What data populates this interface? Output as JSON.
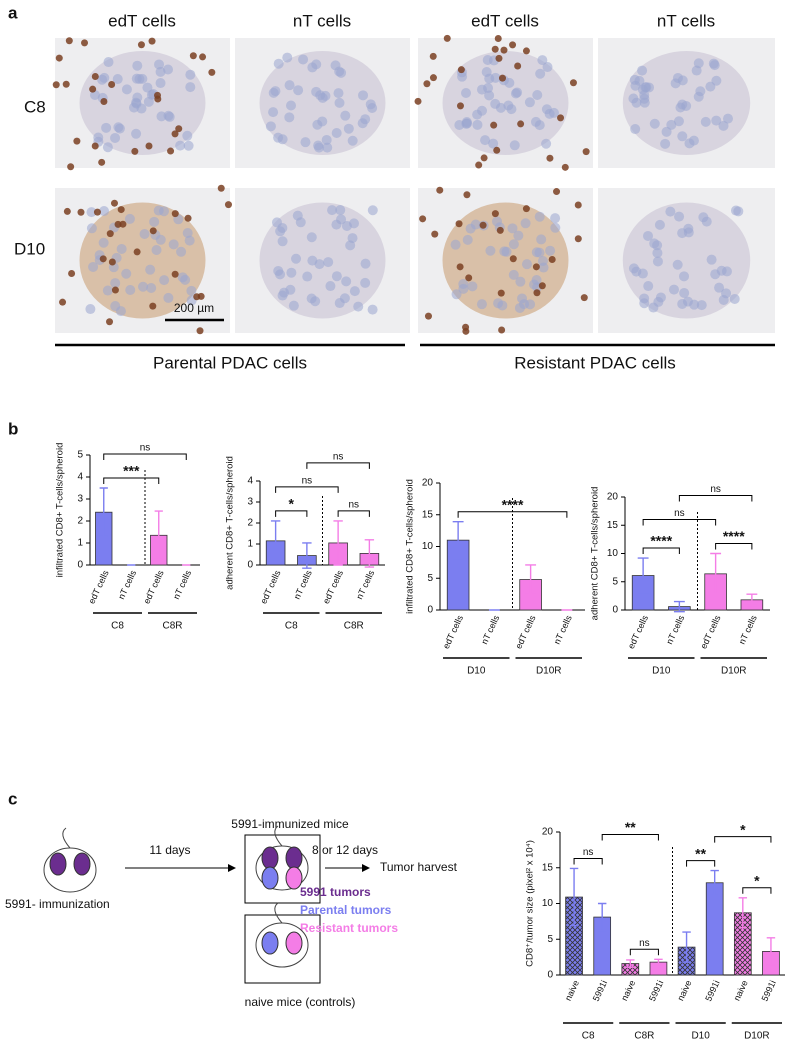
{
  "panel_labels": [
    "a",
    "b",
    "c"
  ],
  "panel_a": {
    "column_labels": [
      "edT cells",
      "nT cells",
      "edT cells",
      "nT cells"
    ],
    "row_labels": [
      "C8",
      "D10"
    ],
    "scale_bar": "200 µm",
    "group_labels": [
      "Parental PDAC cells",
      "Resistant PDAC cells"
    ]
  },
  "diagram": {
    "start": "5991- immunization",
    "step1": "11 days",
    "box1": "5991-immunized mice",
    "step2": "8 or 12 days",
    "end": "Tumor harvest",
    "box2": "naive mice (controls)",
    "legend": [
      {
        "label": "5991 tumors",
        "color": "#6b2d8f"
      },
      {
        "label": "Parental tumors",
        "color": "#7b7ef0"
      },
      {
        "label": "Resistant tumors",
        "color": "#f47de6"
      }
    ]
  },
  "chart_data": [
    {
      "type": "bar",
      "ylabel": "infiltrated CD8+ T-cells/spheroid",
      "categories": [
        "edT cells",
        "nT cells",
        "edT cells",
        "nT cells"
      ],
      "values": [
        2.4,
        0,
        1.35,
        0
      ],
      "errors": [
        1.1,
        0,
        1.1,
        0
      ],
      "bar_colors": [
        "#7b7ef0",
        "#7b7ef0",
        "#f47de6",
        "#f47de6"
      ],
      "groups": [
        "C8",
        "C8R"
      ],
      "ylim": [
        0,
        5
      ],
      "yticks": [
        0,
        1,
        2,
        3,
        4,
        5
      ],
      "significance": [
        {
          "label": "***",
          "from": 0,
          "to": 2
        },
        {
          "label": "ns",
          "from": 0,
          "to": 3
        }
      ]
    },
    {
      "type": "bar",
      "ylabel": "adherent CD8+ T-cells/spheroid",
      "categories": [
        "edT cells",
        "nT cells",
        "edT cells",
        "nT cells"
      ],
      "values": [
        1.15,
        0.45,
        1.05,
        0.55
      ],
      "errors": [
        0.95,
        0.6,
        1.05,
        0.65
      ],
      "bar_colors": [
        "#7b7ef0",
        "#7b7ef0",
        "#f47de6",
        "#f47de6"
      ],
      "groups": [
        "C8",
        "C8R"
      ],
      "ylim": [
        0,
        4
      ],
      "yticks": [
        0,
        1,
        2,
        3,
        4
      ],
      "significance": [
        {
          "label": "*",
          "from": 0,
          "to": 1
        },
        {
          "label": "ns",
          "from": 2,
          "to": 3
        },
        {
          "label": "ns",
          "from": 0,
          "to": 2
        },
        {
          "label": "ns",
          "from": 1,
          "to": 3
        }
      ]
    },
    {
      "type": "bar",
      "ylabel": "infiltrated CD8+ T-cells/spheroid",
      "categories": [
        "edT cells",
        "nT cells",
        "edT cells",
        "nT cells"
      ],
      "values": [
        11,
        0,
        4.8,
        0
      ],
      "errors": [
        2.9,
        0,
        2.3,
        0
      ],
      "bar_colors": [
        "#7b7ef0",
        "#7b7ef0",
        "#f47de6",
        "#f47de6"
      ],
      "groups": [
        "D10",
        "D10R"
      ],
      "ylim": [
        0,
        20
      ],
      "yticks": [
        0,
        5,
        10,
        15,
        20
      ],
      "significance": [
        {
          "label": "****",
          "from": 0,
          "to": 3
        }
      ]
    },
    {
      "type": "bar",
      "ylabel": "adherent CD8+ T-cells/spheroid",
      "categories": [
        "edT cells",
        "nT cells",
        "edT cells",
        "nT cells"
      ],
      "values": [
        6.1,
        0.6,
        6.4,
        1.8
      ],
      "errors": [
        3.1,
        0.9,
        3.6,
        1.0
      ],
      "bar_colors": [
        "#7b7ef0",
        "#7b7ef0",
        "#f47de6",
        "#f47de6"
      ],
      "groups": [
        "D10",
        "D10R"
      ],
      "ylim": [
        0,
        20
      ],
      "yticks": [
        0,
        5,
        10,
        15,
        20
      ],
      "significance": [
        {
          "label": "****",
          "from": 0,
          "to": 1
        },
        {
          "label": "****",
          "from": 2,
          "to": 3
        },
        {
          "label": "ns",
          "from": 0,
          "to": 2
        },
        {
          "label": "ns",
          "from": 1,
          "to": 3
        }
      ]
    },
    {
      "type": "bar",
      "ylabel": "CD8⁺/tumor size (pixel² x 10⁴)",
      "categories": [
        "naive",
        "5991i",
        "naive",
        "5991i",
        "naive",
        "5991i",
        "naive",
        "5991i"
      ],
      "values": [
        10.9,
        8.1,
        1.6,
        1.8,
        3.9,
        12.9,
        8.7,
        3.3
      ],
      "errors": [
        4.0,
        1.9,
        0.5,
        0.4,
        2.1,
        1.7,
        2.1,
        1.9
      ],
      "bar_colors": [
        "#7b7ef0",
        "#7b7ef0",
        "#f47de6",
        "#f47de6",
        "#7b7ef0",
        "#7b7ef0",
        "#f47de6",
        "#f47de6"
      ],
      "hatch": [
        true,
        false,
        true,
        false,
        true,
        false,
        true,
        false
      ],
      "groups": [
        "C8",
        "C8R",
        "D10",
        "D10R"
      ],
      "ylim": [
        0,
        20
      ],
      "yticks": [
        0,
        5,
        10,
        15,
        20
      ],
      "significance": [
        {
          "label": "ns",
          "from": 0,
          "to": 1
        },
        {
          "label": "ns",
          "from": 2,
          "to": 3
        },
        {
          "label": "**",
          "from": 1,
          "to": 3
        },
        {
          "label": "**",
          "from": 4,
          "to": 5
        },
        {
          "label": "*",
          "from": 6,
          "to": 7
        },
        {
          "label": "*",
          "from": 5,
          "to": 7
        }
      ]
    }
  ]
}
